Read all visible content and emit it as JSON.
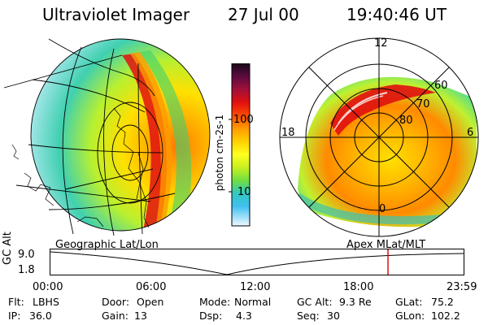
{
  "header": {
    "instrument": "Ultraviolet Imager",
    "date": "27 Jul 00",
    "time": "19:40:46 UT"
  },
  "colorbar": {
    "label": "photon cm-2s-1",
    "ticks": [
      "100",
      "10"
    ],
    "colors": [
      "#1a0a1a",
      "#5a0a40",
      "#a0103a",
      "#e01010",
      "#ff4a00",
      "#ff9a00",
      "#ffd000",
      "#ffff20",
      "#c8f020",
      "#70e040",
      "#30d070",
      "#30c8c0",
      "#40c0f0",
      "#a0e0f0",
      "#f0f8ff"
    ]
  },
  "left_panel": {
    "caption": "Geographic Lat/Lon"
  },
  "right_panel": {
    "caption": "Apex MLat/MLT",
    "mlt_labels": [
      "12",
      "18",
      "6",
      "0"
    ],
    "lat_labels": [
      "60",
      "70",
      "80"
    ]
  },
  "altitude_plot": {
    "ylabel": "GC Alt",
    "yticks": [
      "9.0",
      "1.8"
    ],
    "xticks": [
      "00:00",
      "06:00",
      "12:00",
      "18:00",
      "23:59"
    ],
    "current_time_fraction": 0.817,
    "marker_color": "#e01010"
  },
  "status": {
    "flt_label": "Flt:",
    "flt": "LBHS",
    "door_label": "Door:",
    "door": "Open",
    "mode_label": "Mode:",
    "mode": "Normal",
    "gcalt_label": "GC Alt:",
    "gcalt": "9.3 Re",
    "glat_label": "GLat:",
    "glat": "75.2",
    "ip_label": "IP:",
    "ip": "36.0",
    "gain_label": "Gain:",
    "gain": "13",
    "dsp_label": "Dsp:",
    "dsp": "4.3",
    "seq_label": "Seq:",
    "seq": "30",
    "glon_label": "GLon:",
    "glon": "102.2"
  }
}
